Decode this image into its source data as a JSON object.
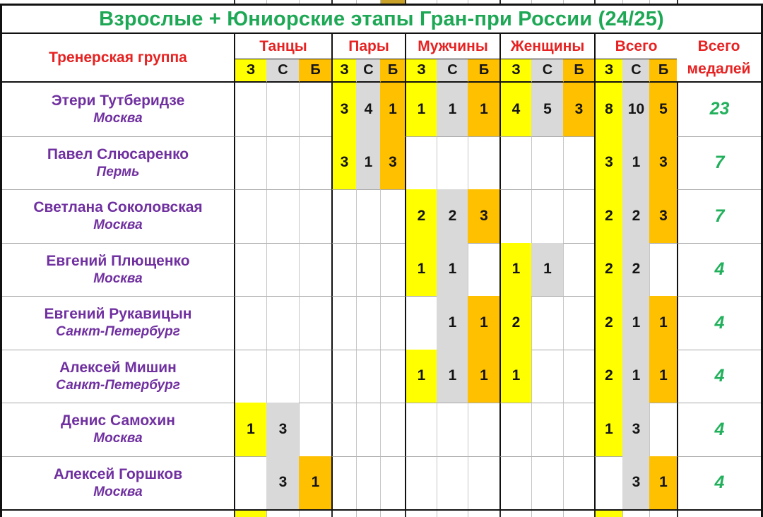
{
  "title": "Взрослые + Юниорские этапы Гран-при России (24/25)",
  "colors": {
    "gold": "#FFFF00",
    "silver": "#D9D9D9",
    "bronze": "#FFC000",
    "title_green": "#1EA855",
    "header_red": "#E62222",
    "purple": "#7030A0",
    "total_green": "#22B05C"
  },
  "chart_data": {
    "type": "table",
    "title": "Взрослые + Юниорские этапы Гран-при России (24/25)",
    "row_header": "Тренерская группа",
    "column_groups": [
      "Танцы",
      "Пары",
      "Мужчины",
      "Женщины",
      "Всего"
    ],
    "medal_columns": [
      "З",
      "С",
      "Б"
    ],
    "total_column": "Всего медалей",
    "total_column_lines": [
      "Всего",
      "медалей"
    ],
    "rows": [
      {
        "name": "Этери Тутберидзе",
        "city": "Москва",
        "values": {
          "Танцы": [
            null,
            null,
            null
          ],
          "Пары": [
            3,
            4,
            1
          ],
          "Мужчины": [
            1,
            1,
            1
          ],
          "Женщины": [
            4,
            5,
            3
          ],
          "Всего": [
            8,
            10,
            5
          ]
        },
        "total": 23
      },
      {
        "name": "Павел Слюсаренко",
        "city": "Пермь",
        "values": {
          "Танцы": [
            null,
            null,
            null
          ],
          "Пары": [
            3,
            1,
            3
          ],
          "Мужчины": [
            null,
            null,
            null
          ],
          "Женщины": [
            null,
            null,
            null
          ],
          "Всего": [
            3,
            1,
            3
          ]
        },
        "total": 7
      },
      {
        "name": "Светлана Соколовская",
        "city": "Москва",
        "values": {
          "Танцы": [
            null,
            null,
            null
          ],
          "Пары": [
            null,
            null,
            null
          ],
          "Мужчины": [
            2,
            2,
            3
          ],
          "Женщины": [
            null,
            null,
            null
          ],
          "Всего": [
            2,
            2,
            3
          ]
        },
        "total": 7
      },
      {
        "name": "Евгений Плющенко",
        "city": "Москва",
        "values": {
          "Танцы": [
            null,
            null,
            null
          ],
          "Пары": [
            null,
            null,
            null
          ],
          "Мужчины": [
            1,
            1,
            null
          ],
          "Женщины": [
            1,
            1,
            null
          ],
          "Всего": [
            2,
            2,
            null
          ]
        },
        "total": 4
      },
      {
        "name": "Евгений Рукавицын",
        "city": "Санкт-Петербург",
        "values": {
          "Танцы": [
            null,
            null,
            null
          ],
          "Пары": [
            null,
            null,
            null
          ],
          "Мужчины": [
            null,
            1,
            1
          ],
          "Женщины": [
            2,
            null,
            null
          ],
          "Всего": [
            2,
            1,
            1
          ]
        },
        "total": 4
      },
      {
        "name": "Алексей Мишин",
        "city": "Санкт-Петербург",
        "values": {
          "Танцы": [
            null,
            null,
            null
          ],
          "Пары": [
            null,
            null,
            null
          ],
          "Мужчины": [
            1,
            1,
            1
          ],
          "Женщины": [
            1,
            null,
            null
          ],
          "Всего": [
            2,
            1,
            1
          ]
        },
        "total": 4
      },
      {
        "name": "Денис Самохин",
        "city": "Москва",
        "values": {
          "Танцы": [
            1,
            3,
            null
          ],
          "Пары": [
            null,
            null,
            null
          ],
          "Мужчины": [
            null,
            null,
            null
          ],
          "Женщины": [
            null,
            null,
            null
          ],
          "Всего": [
            1,
            3,
            null
          ]
        },
        "total": 4
      },
      {
        "name": "Алексей Горшков",
        "city": "Москва",
        "values": {
          "Танцы": [
            null,
            3,
            1
          ],
          "Пары": [
            null,
            null,
            null
          ],
          "Мужчины": [
            null,
            null,
            null
          ],
          "Женщины": [
            null,
            null,
            null
          ],
          "Всего": [
            null,
            3,
            1
          ]
        },
        "total": 4
      }
    ]
  }
}
